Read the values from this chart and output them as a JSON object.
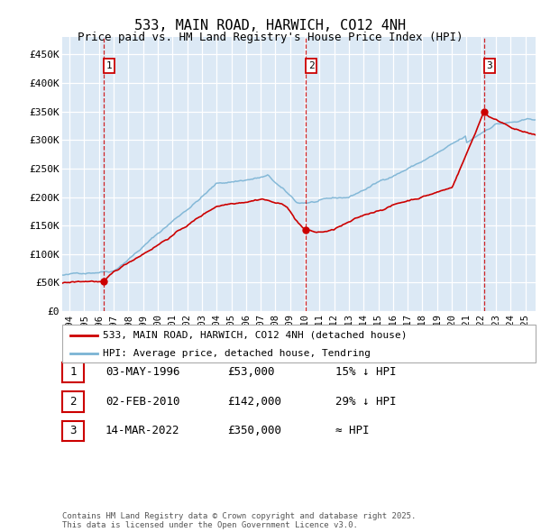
{
  "title": "533, MAIN ROAD, HARWICH, CO12 4NH",
  "subtitle": "Price paid vs. HM Land Registry's House Price Index (HPI)",
  "bg_color": "#dce9f5",
  "grid_color": "#ffffff",
  "red_line_color": "#cc0000",
  "blue_line_color": "#7ab3d4",
  "marker_color": "#cc0000",
  "ylim": [
    0,
    480000
  ],
  "yticks": [
    0,
    50000,
    100000,
    150000,
    200000,
    250000,
    300000,
    350000,
    400000,
    450000
  ],
  "ytick_labels": [
    "£0",
    "£50K",
    "£100K",
    "£150K",
    "£200K",
    "£250K",
    "£300K",
    "£350K",
    "£400K",
    "£450K"
  ],
  "xlim_start": 1993.5,
  "xlim_end": 2025.7,
  "purchase_dates": [
    1996.33,
    2010.09,
    2022.21
  ],
  "purchase_prices": [
    53000,
    142000,
    350000
  ],
  "purchase_labels": [
    "1",
    "2",
    "3"
  ],
  "vline_color": "#cc0000",
  "legend_red_label": "533, MAIN ROAD, HARWICH, CO12 4NH (detached house)",
  "legend_blue_label": "HPI: Average price, detached house, Tendring",
  "table_rows": [
    {
      "num": "1",
      "date": "03-MAY-1996",
      "price": "£53,000",
      "hpi": "15% ↓ HPI"
    },
    {
      "num": "2",
      "date": "02-FEB-2010",
      "price": "£142,000",
      "hpi": "29% ↓ HPI"
    },
    {
      "num": "3",
      "date": "14-MAR-2022",
      "price": "£350,000",
      "hpi": "≈ HPI"
    }
  ],
  "footnote": "Contains HM Land Registry data © Crown copyright and database right 2025.\nThis data is licensed under the Open Government Licence v3.0.",
  "xtick_years": [
    1994,
    1995,
    1996,
    1997,
    1998,
    1999,
    2000,
    2001,
    2002,
    2003,
    2004,
    2005,
    2006,
    2007,
    2008,
    2009,
    2010,
    2011,
    2012,
    2013,
    2014,
    2015,
    2016,
    2017,
    2018,
    2019,
    2020,
    2021,
    2022,
    2023,
    2024,
    2025
  ]
}
